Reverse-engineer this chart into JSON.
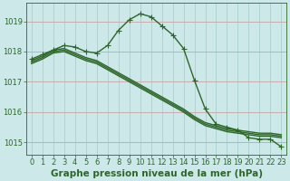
{
  "title": "Graphe pression niveau de la mer (hPa)",
  "background_color": "#cce8e8",
  "grid_color": "#aacfcf",
  "line_color": "#2d6629",
  "xlim": [
    -0.5,
    23.5
  ],
  "ylim": [
    1014.6,
    1019.6
  ],
  "yticks": [
    1015,
    1016,
    1017,
    1018,
    1019
  ],
  "xticks": [
    0,
    1,
    2,
    3,
    4,
    5,
    6,
    7,
    8,
    9,
    10,
    11,
    12,
    13,
    14,
    15,
    16,
    17,
    18,
    19,
    20,
    21,
    22,
    23
  ],
  "series_main": [
    1017.75,
    1017.9,
    1018.05,
    1018.2,
    1018.15,
    1018.0,
    1017.95,
    1018.2,
    1018.7,
    1019.05,
    1019.25,
    1019.15,
    1018.85,
    1018.55,
    1018.1,
    1017.05,
    1016.1,
    1015.6,
    1015.5,
    1015.4,
    1015.15,
    1015.1,
    1015.1,
    1014.85
  ],
  "series_flat1": [
    1017.7,
    1017.85,
    1018.05,
    1018.1,
    1017.95,
    1017.8,
    1017.7,
    1017.5,
    1017.3,
    1017.1,
    1016.9,
    1016.7,
    1016.5,
    1016.3,
    1016.1,
    1015.85,
    1015.65,
    1015.55,
    1015.45,
    1015.4,
    1015.35,
    1015.3,
    1015.3,
    1015.25
  ],
  "series_flat2": [
    1017.65,
    1017.8,
    1018.0,
    1018.05,
    1017.9,
    1017.75,
    1017.65,
    1017.45,
    1017.25,
    1017.05,
    1016.85,
    1016.65,
    1016.45,
    1016.25,
    1016.05,
    1015.8,
    1015.6,
    1015.5,
    1015.4,
    1015.35,
    1015.3,
    1015.25,
    1015.25,
    1015.2
  ],
  "series_flat3": [
    1017.6,
    1017.75,
    1017.95,
    1018.0,
    1017.85,
    1017.7,
    1017.6,
    1017.4,
    1017.2,
    1017.0,
    1016.8,
    1016.6,
    1016.4,
    1016.2,
    1016.0,
    1015.75,
    1015.55,
    1015.45,
    1015.35,
    1015.3,
    1015.25,
    1015.2,
    1015.2,
    1015.15
  ],
  "linewidth": 1.0,
  "title_fontsize": 7.5,
  "tick_fontsize": 6.0
}
